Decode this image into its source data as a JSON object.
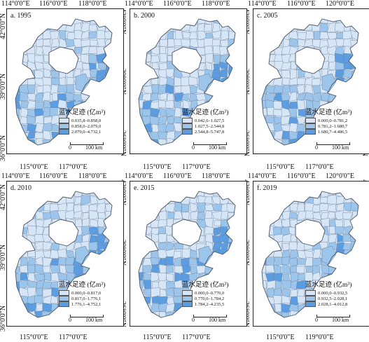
{
  "axes": {
    "lon_top": [
      "114°0'0\"E",
      "116°0'0\"E",
      "118°0'0\"E",
      "120°0'0\"E"
    ],
    "lon_bottom": [
      "115°0'0\"E",
      "117°0'0\"E",
      "119°0'0\"E"
    ],
    "lat": [
      "42°0'0\"N",
      "39°0'0\"N",
      "36°0'0\"N"
    ]
  },
  "colors": {
    "class1": "#d6e6f7",
    "class2": "#9cc5ec",
    "class3": "#5b9de0",
    "border": "#6e7f95"
  },
  "scalebar": {
    "zero": "0",
    "distance": "100 km"
  },
  "panels": [
    {
      "title": "a. 1995",
      "legend_title": "蓝水足迹 (亿m³)",
      "classes": [
        "0.035,8–0.858,0",
        "0.858,0–2.079,0",
        "2.079,0–4.732,1"
      ]
    },
    {
      "title": "b. 2000",
      "legend_title": "蓝水足迹 (亿m³)",
      "classes": [
        "0.042,6–1.027,5",
        "1.027,5–2.544,8",
        "2.544,8–5.747,8"
      ]
    },
    {
      "title": "c. 2005",
      "legend_title": "蓝水足迹 (亿m³)",
      "classes": [
        "0.000,0–0.781,2",
        "0.781,2–1.680,7",
        "1.680,7–4.486,5"
      ]
    },
    {
      "title": "d. 2010",
      "legend_title": "蓝水足迹 (亿m³)",
      "classes": [
        "0.000,0–0.817,0",
        "0.817,0–1.776,1",
        "1.776,1–4.752,1"
      ]
    },
    {
      "title": "e. 2015",
      "legend_title": "蓝水足迹 (亿m³)",
      "classes": [
        "0.000,0–0.770,0",
        "0.770,0–1.784,2",
        "1.784,2–4.235,5"
      ]
    },
    {
      "title": "f. 2019",
      "legend_title": "蓝水足迹 (亿m³)",
      "classes": [
        "0.000,0–0.932,5",
        "0.932,5–2.028,1",
        "2.028,1–4.012,8"
      ]
    }
  ]
}
